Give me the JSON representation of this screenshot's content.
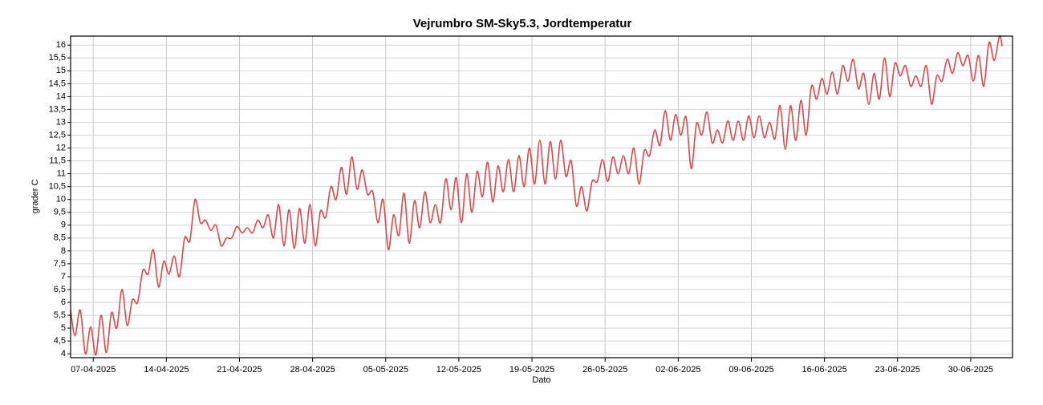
{
  "chart_data": {
    "type": "line",
    "title": "Vejrumbro SM-Sky5.3, Jordtemperatur",
    "x_label": "Dato",
    "y_label": "grader C",
    "grid": true,
    "xlim": [
      "2025-04-04T20:00",
      "2025-07-04T00:00"
    ],
    "ylim": [
      3.85,
      16.35
    ],
    "xticks": [
      {
        "value": "2025-04-07T00:00",
        "label": "07-04-2025"
      },
      {
        "value": "2025-04-14T00:00",
        "label": "14-04-2025"
      },
      {
        "value": "2025-04-21T00:00",
        "label": "21-04-2025"
      },
      {
        "value": "2025-04-28T00:00",
        "label": "28-04-2025"
      },
      {
        "value": "2025-05-05T00:00",
        "label": "05-05-2025"
      },
      {
        "value": "2025-05-12T00:00",
        "label": "12-05-2025"
      },
      {
        "value": "2025-05-19T00:00",
        "label": "19-05-2025"
      },
      {
        "value": "2025-05-26T00:00",
        "label": "26-05-2025"
      },
      {
        "value": "2025-06-02T00:00",
        "label": "02-06-2025"
      },
      {
        "value": "2025-06-09T00:00",
        "label": "09-06-2025"
      },
      {
        "value": "2025-06-16T00:00",
        "label": "16-06-2025"
      },
      {
        "value": "2025-06-23T00:00",
        "label": "23-06-2025"
      },
      {
        "value": "2025-06-30T00:00",
        "label": "30-06-2025"
      }
    ],
    "yticks": [
      4,
      {
        "value": 4.5,
        "label": "4,5"
      },
      5,
      {
        "value": 5.5,
        "label": "5,5"
      },
      6,
      {
        "value": 6.5,
        "label": "6,5"
      },
      7,
      {
        "value": 7.5,
        "label": "7,5"
      },
      8,
      {
        "value": 8.5,
        "label": "8,5"
      },
      9,
      {
        "value": 9.5,
        "label": "9,5"
      },
      10,
      {
        "value": 10.5,
        "label": "10,5"
      },
      11,
      {
        "value": 11.5,
        "label": "11,5"
      },
      12,
      {
        "value": 12.5,
        "label": "12,5"
      },
      13,
      {
        "value": 13.5,
        "label": "13,5"
      },
      14,
      {
        "value": 14.5,
        "label": "14,5"
      },
      15,
      {
        "value": 15.5,
        "label": "15,5"
      },
      16
    ],
    "series": [
      {
        "color": "#e0464c",
        "x": [
          "2025-04-04T20:00",
          "2025-04-05T06:00",
          "2025-04-05T18:00",
          "2025-04-06T06:00",
          "2025-04-06T18:00",
          "2025-04-07T06:00",
          "2025-04-07T18:00",
          "2025-04-08T06:00",
          "2025-04-08T18:00",
          "2025-04-09T06:00",
          "2025-04-09T18:00",
          "2025-04-10T06:00",
          "2025-04-10T18:00",
          "2025-04-11T06:00",
          "2025-04-11T18:00",
          "2025-04-12T06:00",
          "2025-04-12T18:00",
          "2025-04-13T06:00",
          "2025-04-13T18:00",
          "2025-04-14T06:00",
          "2025-04-14T18:00",
          "2025-04-15T06:00",
          "2025-04-15T18:00",
          "2025-04-16T06:00",
          "2025-04-16T18:00",
          "2025-04-17T06:00",
          "2025-04-17T18:00",
          "2025-04-18T06:00",
          "2025-04-18T18:00",
          "2025-04-19T06:00",
          "2025-04-19T18:00",
          "2025-04-20T06:00",
          "2025-04-20T18:00",
          "2025-04-21T06:00",
          "2025-04-21T18:00",
          "2025-04-22T06:00",
          "2025-04-22T18:00",
          "2025-04-23T06:00",
          "2025-04-23T18:00",
          "2025-04-24T06:00",
          "2025-04-24T18:00",
          "2025-04-25T06:00",
          "2025-04-25T18:00",
          "2025-04-26T06:00",
          "2025-04-26T18:00",
          "2025-04-27T06:00",
          "2025-04-27T18:00",
          "2025-04-28T06:00",
          "2025-04-28T18:00",
          "2025-04-29T06:00",
          "2025-04-29T18:00",
          "2025-04-30T06:00",
          "2025-04-30T18:00",
          "2025-05-01T06:00",
          "2025-05-01T18:00",
          "2025-05-02T06:00",
          "2025-05-02T18:00",
          "2025-05-03T06:00",
          "2025-05-03T18:00",
          "2025-05-04T06:00",
          "2025-05-04T18:00",
          "2025-05-05T06:00",
          "2025-05-05T18:00",
          "2025-05-06T06:00",
          "2025-05-06T18:00",
          "2025-05-07T06:00",
          "2025-05-07T18:00",
          "2025-05-08T06:00",
          "2025-05-08T18:00",
          "2025-05-09T06:00",
          "2025-05-09T18:00",
          "2025-05-10T06:00",
          "2025-05-10T18:00",
          "2025-05-11T06:00",
          "2025-05-11T18:00",
          "2025-05-12T06:00",
          "2025-05-12T18:00",
          "2025-05-13T06:00",
          "2025-05-13T18:00",
          "2025-05-14T06:00",
          "2025-05-14T18:00",
          "2025-05-15T06:00",
          "2025-05-15T18:00",
          "2025-05-16T06:00",
          "2025-05-16T18:00",
          "2025-05-17T06:00",
          "2025-05-17T18:00",
          "2025-05-18T06:00",
          "2025-05-18T18:00",
          "2025-05-19T06:00",
          "2025-05-19T18:00",
          "2025-05-20T06:00",
          "2025-05-20T18:00",
          "2025-05-21T06:00",
          "2025-05-21T18:00",
          "2025-05-22T06:00",
          "2025-05-22T18:00",
          "2025-05-23T06:00",
          "2025-05-23T18:00",
          "2025-05-24T06:00",
          "2025-05-24T18:00",
          "2025-05-25T06:00",
          "2025-05-25T18:00",
          "2025-05-26T06:00",
          "2025-05-26T18:00",
          "2025-05-27T06:00",
          "2025-05-27T18:00",
          "2025-05-28T06:00",
          "2025-05-28T18:00",
          "2025-05-29T06:00",
          "2025-05-29T18:00",
          "2025-05-30T06:00",
          "2025-05-30T18:00",
          "2025-05-31T06:00",
          "2025-05-31T18:00",
          "2025-06-01T06:00",
          "2025-06-01T18:00",
          "2025-06-02T06:00",
          "2025-06-02T18:00",
          "2025-06-03T06:00",
          "2025-06-03T18:00",
          "2025-06-04T06:00",
          "2025-06-04T18:00",
          "2025-06-05T06:00",
          "2025-06-05T18:00",
          "2025-06-06T06:00",
          "2025-06-06T18:00",
          "2025-06-07T06:00",
          "2025-06-07T18:00",
          "2025-06-08T06:00",
          "2025-06-08T18:00",
          "2025-06-09T06:00",
          "2025-06-09T18:00",
          "2025-06-10T06:00",
          "2025-06-10T18:00",
          "2025-06-11T06:00",
          "2025-06-11T18:00",
          "2025-06-12T06:00",
          "2025-06-12T18:00",
          "2025-06-13T06:00",
          "2025-06-13T18:00",
          "2025-06-14T06:00",
          "2025-06-14T18:00",
          "2025-06-15T06:00",
          "2025-06-15T18:00",
          "2025-06-16T06:00",
          "2025-06-16T18:00",
          "2025-06-17T06:00",
          "2025-06-17T18:00",
          "2025-06-18T06:00",
          "2025-06-18T18:00",
          "2025-06-19T06:00",
          "2025-06-19T18:00",
          "2025-06-20T06:00",
          "2025-06-20T18:00",
          "2025-06-21T06:00",
          "2025-06-21T18:00",
          "2025-06-22T06:00",
          "2025-06-22T18:00",
          "2025-06-23T06:00",
          "2025-06-23T18:00",
          "2025-06-24T06:00",
          "2025-06-24T18:00",
          "2025-06-25T06:00",
          "2025-06-25T18:00",
          "2025-06-26T06:00",
          "2025-06-26T18:00",
          "2025-06-27T06:00",
          "2025-06-27T18:00",
          "2025-06-28T06:00",
          "2025-06-28T18:00",
          "2025-06-29T06:00",
          "2025-06-29T18:00",
          "2025-06-30T06:00",
          "2025-06-30T18:00",
          "2025-07-01T06:00",
          "2025-07-01T18:00",
          "2025-07-02T06:00",
          "2025-07-02T18:00",
          "2025-07-03T00:00"
        ],
        "values": [
          5.7,
          4.7,
          5.7,
          4.0,
          5.05,
          3.95,
          5.5,
          4.05,
          5.6,
          5.0,
          6.5,
          5.1,
          6.1,
          6.0,
          7.25,
          7.1,
          8.05,
          6.6,
          7.6,
          7.1,
          7.8,
          7.0,
          8.5,
          8.4,
          10.0,
          9.1,
          9.2,
          8.8,
          9.0,
          8.2,
          8.5,
          8.5,
          8.95,
          8.7,
          8.9,
          8.7,
          9.2,
          8.9,
          9.4,
          8.5,
          9.8,
          8.2,
          9.6,
          8.1,
          9.65,
          8.3,
          9.8,
          8.2,
          9.55,
          9.3,
          10.5,
          10.0,
          11.25,
          10.2,
          11.65,
          10.4,
          11.15,
          10.2,
          10.3,
          9.1,
          10.0,
          8.05,
          9.4,
          8.6,
          10.25,
          8.3,
          9.95,
          8.9,
          10.3,
          9.1,
          9.8,
          9.1,
          10.8,
          9.6,
          10.85,
          9.1,
          11.0,
          9.5,
          11.1,
          10.1,
          11.45,
          9.9,
          11.3,
          10.3,
          11.55,
          10.3,
          11.7,
          10.5,
          12.0,
          10.6,
          12.3,
          10.6,
          12.25,
          10.8,
          12.3,
          10.9,
          11.5,
          9.75,
          10.5,
          9.55,
          10.7,
          10.7,
          11.55,
          10.7,
          11.65,
          11.0,
          11.7,
          11.0,
          12.0,
          10.6,
          11.9,
          11.7,
          12.7,
          12.1,
          13.45,
          12.3,
          13.3,
          12.5,
          13.2,
          11.2,
          12.95,
          12.5,
          13.4,
          12.2,
          12.7,
          12.2,
          13.05,
          12.3,
          13.05,
          12.3,
          13.25,
          12.4,
          13.25,
          12.4,
          13.0,
          12.35,
          13.65,
          11.95,
          13.65,
          12.3,
          13.85,
          12.5,
          14.4,
          13.9,
          14.7,
          14.1,
          14.95,
          14.1,
          15.2,
          14.6,
          15.45,
          14.3,
          14.9,
          13.7,
          14.9,
          13.9,
          15.5,
          14.0,
          15.3,
          14.8,
          15.2,
          14.4,
          14.8,
          14.4,
          15.2,
          13.7,
          14.8,
          14.6,
          15.45,
          14.9,
          15.7,
          15.2,
          15.6,
          14.6,
          15.6,
          14.4,
          16.1,
          15.4,
          16.35,
          15.95
        ]
      }
    ]
  }
}
